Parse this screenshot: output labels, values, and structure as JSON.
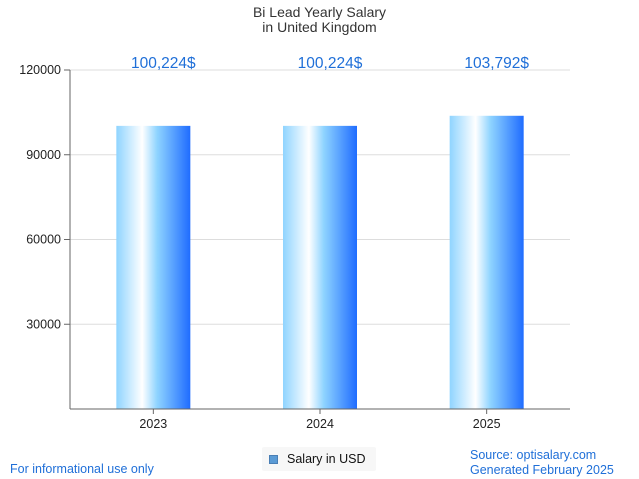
{
  "title": {
    "line1": "Bi Lead Yearly Salary",
    "line2": "in United Kingdom"
  },
  "legend": {
    "label": "Salary in USD"
  },
  "footer": {
    "left": "For informational use only",
    "source": "Source: optisalary.com",
    "generated": "Generated February 2025"
  },
  "colors": {
    "bar_light": "#ffffff",
    "bar_mid": "#8fd4ff",
    "bar_dark": "#1f6cff",
    "value_label": "#1f6fd8",
    "grid": "#dddddd",
    "axis": "#666666"
  },
  "chart_data": {
    "type": "bar",
    "categories": [
      "2023",
      "2024",
      "2025"
    ],
    "series": [
      {
        "name": "Salary in USD",
        "values": [
          100224,
          100224,
          103792
        ]
      }
    ],
    "value_labels": [
      "100,224$",
      "100,224$",
      "103,792$"
    ],
    "yticks": [
      30000,
      60000,
      90000,
      120000
    ],
    "ylim": [
      0,
      120000
    ],
    "grid": true,
    "legend_position": "bottom"
  }
}
